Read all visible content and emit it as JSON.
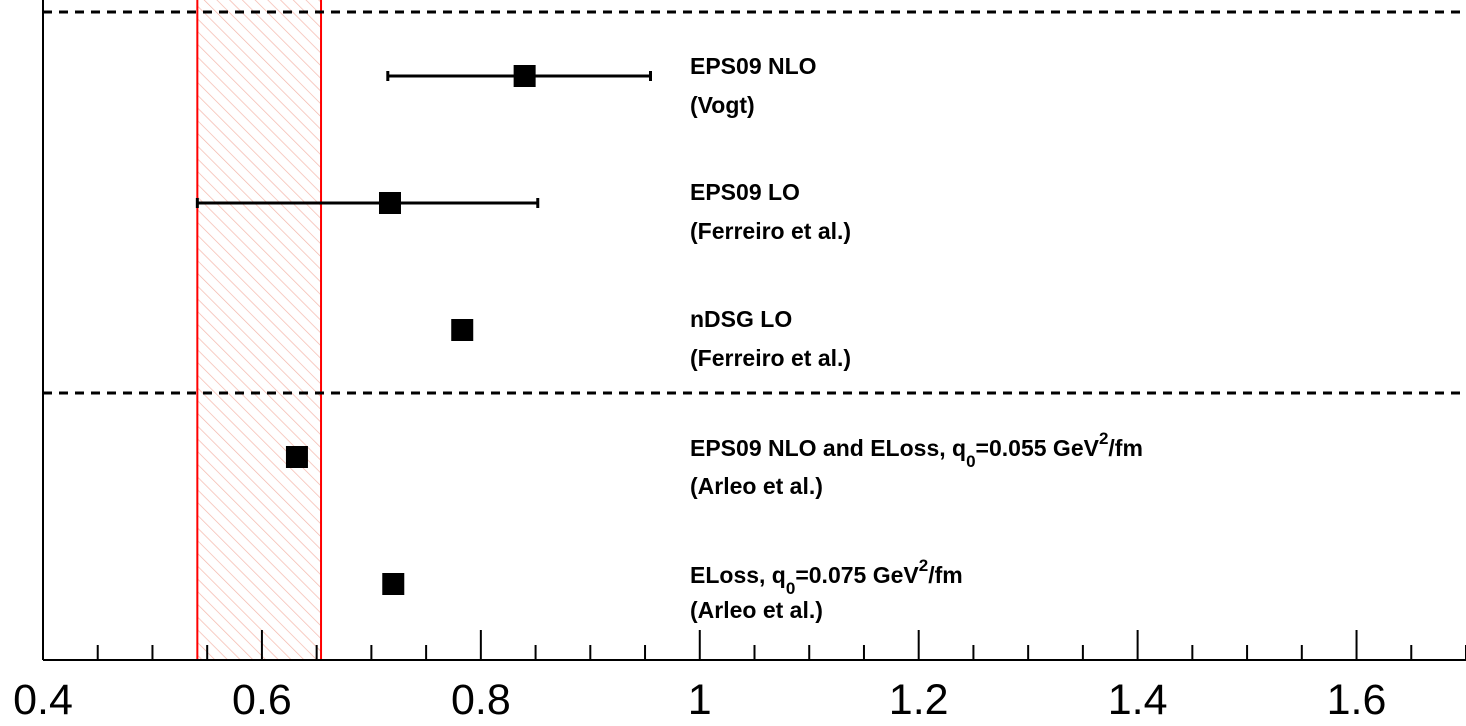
{
  "chart_data": {
    "type": "scatter",
    "x_ticks": [
      "0.4",
      "0.6",
      "0.8",
      "1",
      "1.2",
      "1.4",
      "1.6"
    ],
    "xlim": [
      0.4,
      1.7
    ],
    "grid": false,
    "band": {
      "from": 0.541,
      "to": 0.654,
      "color": "#ff0000",
      "fill": "hatched"
    },
    "points": [
      {
        "value": 0.84,
        "err_low": 0.715,
        "err_high": 0.955,
        "lines": [
          "EPS09 NLO",
          "(Vogt)"
        ]
      },
      {
        "value": 0.717,
        "err_low": 0.541,
        "err_high": 0.852,
        "lines": [
          "EPS09 LO",
          "(Ferreiro et al.)"
        ]
      },
      {
        "value": 0.783,
        "lines": [
          "nDSG LO",
          "(Ferreiro et al.)"
        ]
      },
      {
        "value": 0.632,
        "lines": [
          "EPS09 NLO and ELoss, q",
          "0",
          "=0.055 GeV",
          "2",
          "/fm",
          "(Arleo et al.)"
        ]
      },
      {
        "value": 0.72,
        "lines": [
          "ELoss, q",
          "0",
          "=0.075 GeV",
          "2",
          "/fm",
          "(Arleo et al.)"
        ]
      }
    ]
  }
}
